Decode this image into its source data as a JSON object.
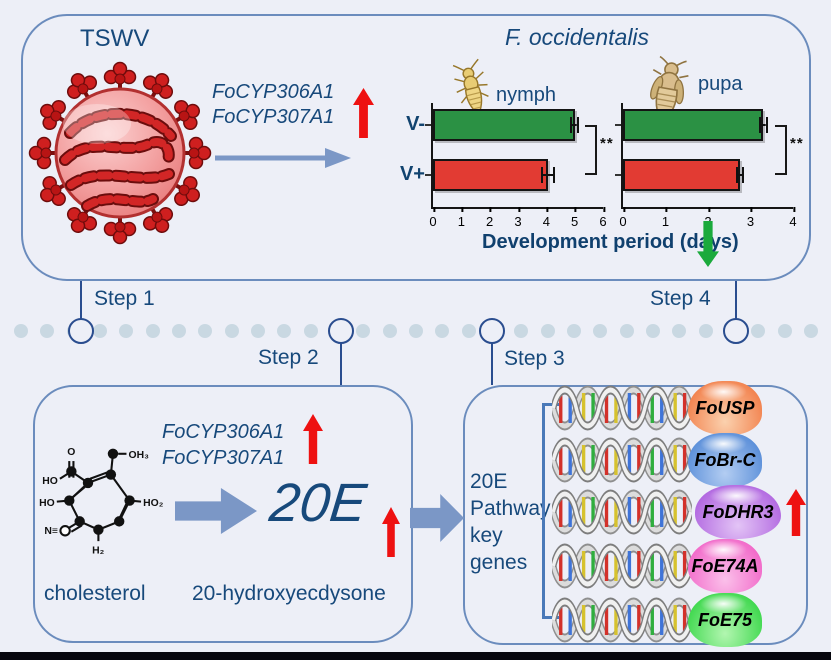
{
  "title_labels": {
    "virus": "TSWV",
    "species": "F. occidentalis"
  },
  "top_panel": {
    "genes_up": [
      "FoCYP306A1",
      "FoCYP307A1"
    ],
    "xlabel": "Development period (days)"
  },
  "chart_data": [
    {
      "type": "bar",
      "orientation": "horizontal",
      "title": "nymph",
      "categories": [
        "V-",
        "V+"
      ],
      "values": [
        5.0,
        4.05
      ],
      "errors": [
        0.15,
        0.25
      ],
      "series_colors": [
        "#2b9144",
        "#e23b33"
      ],
      "xlim": [
        0,
        6
      ],
      "xticks": [
        0,
        1,
        2,
        3,
        4,
        5,
        6
      ],
      "significance": "**",
      "xlabel": "Development period (days)",
      "grid": false
    },
    {
      "type": "bar",
      "orientation": "horizontal",
      "title": "pupa",
      "categories": [
        "V-",
        "V+"
      ],
      "values": [
        3.3,
        2.75
      ],
      "errors": [
        0.1,
        0.1
      ],
      "series_colors": [
        "#2b9144",
        "#e23b33"
      ],
      "xlim": [
        0,
        4
      ],
      "xticks": [
        0,
        1,
        2,
        3,
        4
      ],
      "significance": "**",
      "xlabel": "Development period (days)",
      "grid": false
    }
  ],
  "steps": [
    "Step 1",
    "Step 2",
    "Step 3",
    "Step 4"
  ],
  "timeline": {
    "dot_count": 31
  },
  "bottom_left": {
    "genes_up": [
      "FoCYP306A1",
      "FoCYP307A1"
    ],
    "product_abbr": "20E",
    "substrate_label": "cholesterol",
    "product_label": "20-hydroxyecdysone",
    "molecule_labels": {
      "o": "O",
      "oh3": "OH₃",
      "ho_top": "HO",
      "ho_left": "HO",
      "ho2": "HO₂",
      "n": "N≡",
      "h2": "H₂"
    }
  },
  "bottom_right": {
    "pathway_lines": [
      "20E",
      "Pathway",
      "key",
      "genes"
    ],
    "genes": [
      {
        "label": "FoUSP",
        "color": "#f2824e",
        "light": "#fbd1ae"
      },
      {
        "label": "FoBr-C",
        "color": "#5b8fd9",
        "light": "#b3cdf2"
      },
      {
        "label": "FoDHR3",
        "color": "#b167e0",
        "light": "#e3c4f6"
      },
      {
        "label": "FoE74A",
        "color": "#f169c9",
        "light": "#fbc0ea"
      },
      {
        "label": "FoE75",
        "color": "#3fd84e",
        "light": "#b2f6b0"
      }
    ]
  },
  "colors": {
    "background": "#edeff7",
    "panel_border": "#6b8cbd",
    "navy_text": "#17497b",
    "up_arrow_red": "#ee1111",
    "down_arrow_green": "#1baa3c",
    "flow_arrow_blue": "#7b97c6",
    "bar_green": "#2b9144",
    "bar_red": "#e23b33",
    "timeline_dot": "#c9d8e2",
    "step_marker": "#2a4d8f",
    "footer_bar": "#07070e"
  }
}
